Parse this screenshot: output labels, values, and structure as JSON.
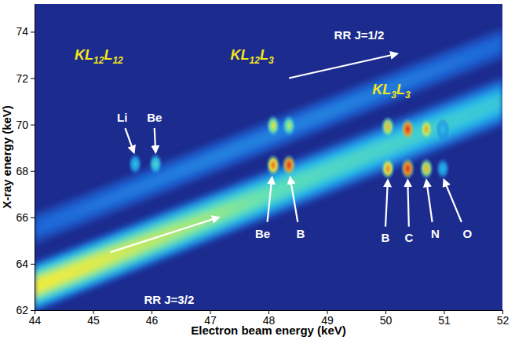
{
  "chart_data": {
    "type": "heatmap",
    "xlabel": "Electron beam energy (keV)",
    "ylabel": "X-ray energy (keV)",
    "xlim": [
      44,
      52
    ],
    "ylim": [
      62,
      75.2
    ],
    "xticks": [
      44,
      45,
      46,
      47,
      48,
      49,
      50,
      51,
      52
    ],
    "yticks": [
      62,
      64,
      66,
      68,
      70,
      72,
      74
    ],
    "bands": [
      {
        "x": [
          44,
          45,
          46,
          47,
          48,
          49,
          50,
          51,
          52
        ],
        "center": [
          63.0,
          64.0,
          65.0,
          66.0,
          67.0,
          68.0,
          69.0,
          70.0,
          71.0
        ],
        "width": [
          2.2,
          2.2,
          2.2,
          2.2,
          2.2,
          2.2,
          2.2,
          2.2,
          2.2
        ],
        "intensity": [
          0.68,
          0.66,
          0.62,
          0.58,
          0.52,
          0.48,
          0.46,
          0.44,
          0.42
        ]
      },
      {
        "x": [
          44,
          45,
          46,
          47,
          48,
          49,
          50,
          51,
          52
        ],
        "center": [
          65.5,
          66.5,
          67.5,
          68.5,
          69.5,
          70.5,
          71.5,
          72.5,
          73.5
        ],
        "width": [
          1.5,
          1.5,
          1.5,
          1.5,
          1.5,
          1.5,
          1.5,
          1.5,
          1.5
        ],
        "intensity": [
          0.2,
          0.22,
          0.24,
          0.25,
          0.25,
          0.25,
          0.24,
          0.22,
          0.2
        ]
      }
    ],
    "spots": [
      {
        "x": 45.72,
        "y": 68.3,
        "intensity": 0.38
      },
      {
        "x": 46.07,
        "y": 68.3,
        "intensity": 0.46
      },
      {
        "x": 48.08,
        "y": 69.95,
        "intensity": 0.66
      },
      {
        "x": 48.35,
        "y": 69.95,
        "intensity": 0.6
      },
      {
        "x": 48.08,
        "y": 68.25,
        "intensity": 0.82
      },
      {
        "x": 48.35,
        "y": 68.25,
        "intensity": 0.93
      },
      {
        "x": 50.04,
        "y": 69.9,
        "intensity": 0.72
      },
      {
        "x": 50.38,
        "y": 69.8,
        "intensity": 0.95
      },
      {
        "x": 50.7,
        "y": 69.8,
        "intensity": 0.74
      },
      {
        "x": 50.98,
        "y": 69.8,
        "intensity": 0.38
      },
      {
        "x": 50.04,
        "y": 68.1,
        "intensity": 0.78
      },
      {
        "x": 50.38,
        "y": 68.1,
        "intensity": 0.94
      },
      {
        "x": 50.7,
        "y": 68.1,
        "intensity": 0.72
      },
      {
        "x": 50.98,
        "y": 68.1,
        "intensity": 0.36
      }
    ],
    "annotations": [
      {
        "text": "KL12L12",
        "x": 45.1,
        "y": 73.0,
        "color": "#f5e61a"
      },
      {
        "text": "KL12L3",
        "x": 47.72,
        "y": 73.0,
        "color": "#f5e61a"
      },
      {
        "text": "KL3L3",
        "x": 50.1,
        "y": 71.5,
        "color": "#f5e61a"
      },
      {
        "text": "RR J=1/2",
        "x": 49.55,
        "y": 73.85,
        "color": "#ffffff",
        "from": [
          48.35,
          72.0
        ],
        "to": [
          50.2,
          73.05
        ]
      },
      {
        "text": "RR J=3/2",
        "x": 46.3,
        "y": 62.45,
        "color": "#ffffff",
        "from": [
          45.3,
          64.5
        ],
        "to": [
          47.15,
          66.0
        ]
      },
      {
        "text": "Li",
        "x": 45.5,
        "y": 70.3,
        "color": "#ffffff",
        "from": [
          45.55,
          69.85
        ],
        "to": [
          45.7,
          68.8
        ]
      },
      {
        "text": "Be",
        "x": 46.05,
        "y": 70.3,
        "color": "#ffffff",
        "from": [
          46.05,
          69.85
        ],
        "to": [
          46.07,
          68.8
        ]
      },
      {
        "text": "Be",
        "x": 47.9,
        "y": 65.3,
        "color": "#ffffff",
        "from": [
          47.98,
          65.8
        ],
        "to": [
          48.06,
          67.72
        ]
      },
      {
        "text": "B",
        "x": 48.55,
        "y": 65.3,
        "color": "#ffffff",
        "from": [
          48.5,
          65.8
        ],
        "to": [
          48.37,
          67.72
        ]
      },
      {
        "text": "B",
        "x": 50.0,
        "y": 65.1,
        "color": "#ffffff",
        "from": [
          50.0,
          65.6
        ],
        "to": [
          50.04,
          67.6
        ]
      },
      {
        "text": "C",
        "x": 50.4,
        "y": 65.1,
        "color": "#ffffff",
        "from": [
          50.4,
          65.6
        ],
        "to": [
          50.38,
          67.6
        ]
      },
      {
        "text": "N",
        "x": 50.85,
        "y": 65.3,
        "color": "#ffffff",
        "from": [
          50.8,
          65.8
        ],
        "to": [
          50.7,
          67.6
        ]
      },
      {
        "text": "O",
        "x": 51.4,
        "y": 65.3,
        "color": "#ffffff",
        "from": [
          51.3,
          65.8
        ],
        "to": [
          51.0,
          67.62
        ]
      }
    ]
  }
}
